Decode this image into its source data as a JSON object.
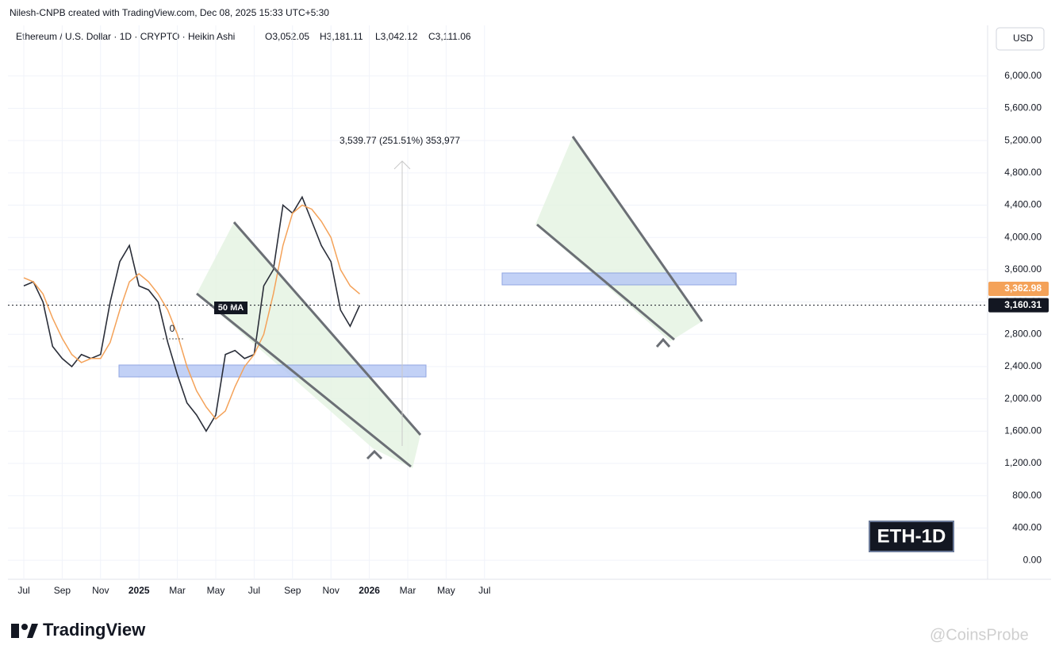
{
  "header": "Nilesh-CNPB created with TradingView.com, Dec 08, 2025 15:33 UTC+5:30",
  "symbol": "Ethereum / U.S. Dollar · 1D · CRYPTO · Heikin Ashi",
  "ohlc": [
    "O3,052.05",
    "H3,181.11",
    "L3,042.12",
    "C3,111.06"
  ],
  "currency": "USD",
  "logo": "TradingView",
  "watermark": "@CoinsProbe",
  "chart_data": {
    "type": "line",
    "categories": [
      "Jul",
      null,
      null,
      null,
      "Sep",
      null,
      null,
      null,
      "Nov",
      null,
      null,
      null,
      "2025",
      null,
      null,
      null,
      "Mar",
      null,
      null,
      null,
      "May",
      null,
      null,
      null,
      "Jul",
      null,
      null,
      null,
      "Sep",
      null,
      null,
      null,
      "Nov",
      null,
      null,
      null,
      "2026",
      null,
      null,
      null,
      "Mar",
      null,
      null,
      null,
      "May",
      null,
      null,
      null,
      "Jul"
    ],
    "series": [
      {
        "color": "#2a2e39",
        "values": [
          3400,
          3450,
          3200,
          2650,
          2500,
          2400,
          2550,
          2500,
          2550,
          3200,
          3700,
          3900,
          3400,
          3350,
          3200,
          2700,
          2300,
          1950,
          1800,
          1600,
          1800,
          2550,
          2600,
          2500,
          2550,
          3400,
          3600,
          4400,
          4300,
          4500,
          4200,
          3900,
          3700,
          3100,
          2900,
          3160,
          null,
          null,
          null,
          null,
          null,
          null,
          null,
          null,
          null,
          null,
          null,
          null,
          null
        ]
      },
      {
        "name": "50 MA",
        "color": "#f4a259",
        "values": [
          3500,
          3450,
          3300,
          3000,
          2750,
          2550,
          2450,
          2500,
          2500,
          2700,
          3100,
          3450,
          3550,
          3450,
          3300,
          3100,
          2800,
          2400,
          2100,
          1900,
          1750,
          1850,
          2150,
          2400,
          2550,
          2800,
          3300,
          3900,
          4300,
          4400,
          4350,
          4200,
          4000,
          3600,
          3400,
          3300,
          null,
          null,
          null,
          null,
          null,
          null,
          null,
          null,
          null,
          null,
          null,
          null,
          null
        ]
      }
    ],
    "ylim": [
      -235,
      6627
    ],
    "yticks": [
      {
        "value": 0,
        "label": "0.00"
      },
      {
        "value": 400,
        "label": "400.00"
      },
      {
        "value": 800,
        "label": "800.00"
      },
      {
        "value": 1200,
        "label": "1,200.00"
      },
      {
        "value": 1600,
        "label": "1,600.00"
      },
      {
        "value": 2000,
        "label": "2,000.00"
      },
      {
        "value": 2400,
        "label": "2,400.00"
      },
      {
        "value": 2800,
        "label": "2,800.00"
      },
      {
        "value": 3200,
        "label": "3,200.00"
      },
      {
        "value": 3600,
        "label": "3,600.00"
      },
      {
        "value": 4000,
        "label": "4,000.00"
      },
      {
        "value": 4400,
        "label": "4,400.00"
      },
      {
        "value": 4800,
        "label": "4,800.00"
      },
      {
        "value": 5200,
        "label": "5,200.00"
      },
      {
        "value": 5600,
        "label": "5,600.00"
      },
      {
        "value": 6000,
        "label": "6,000.00"
      }
    ],
    "price_labels": [
      {
        "value": 3362.98,
        "label": "3,362.98",
        "color": "#f4a259"
      },
      {
        "value": 3160.31,
        "label": "3,160.31",
        "color": "#131722"
      }
    ],
    "annotations": [
      "50 MA",
      "0",
      "3,539.77 (251.51%) 353,977",
      "ETH-1D"
    ],
    "grid": true
  }
}
